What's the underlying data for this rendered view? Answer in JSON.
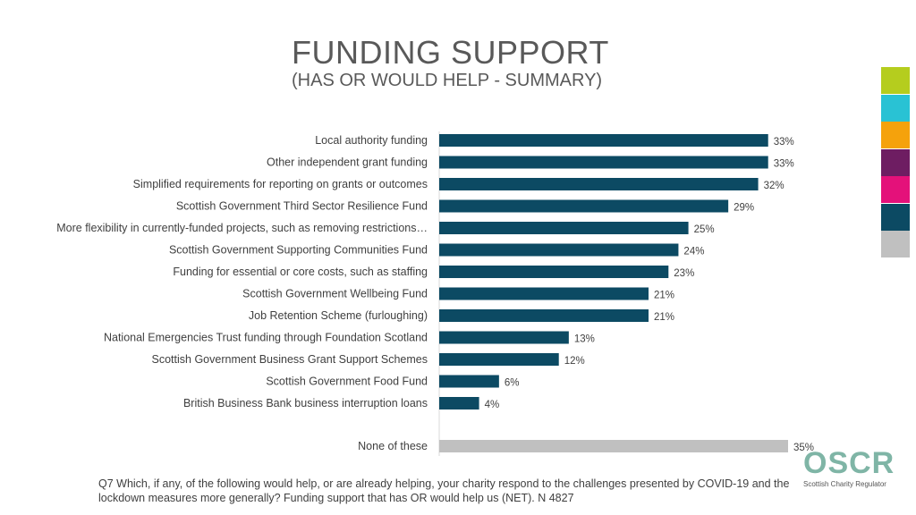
{
  "title": "FUNDING SUPPORT",
  "subtitle": "(HAS OR WOULD HELP - SUMMARY)",
  "chart_data": {
    "type": "bar",
    "orientation": "horizontal",
    "title": "FUNDING SUPPORT",
    "subtitle": "(HAS OR WOULD HELP - SUMMARY)",
    "categories": [
      "Local authority funding",
      "Other independent grant funding",
      "Simplified requirements for reporting on grants or outcomes",
      "Scottish Government Third Sector Resilience Fund",
      "More flexibility in currently-funded projects, such as removing restrictions…",
      "Scottish Government Supporting Communities Fund",
      "Funding for essential or core costs, such as staffing",
      "Scottish Government Wellbeing Fund",
      "Job Retention Scheme (furloughing)",
      "National Emergencies Trust funding through Foundation Scotland",
      "Scottish Government Business Grant Support Schemes",
      "Scottish Government Food Fund",
      "British Business Bank business interruption loans",
      "None of these"
    ],
    "values": [
      33,
      33,
      32,
      29,
      25,
      24,
      23,
      21,
      21,
      13,
      12,
      6,
      4,
      35
    ],
    "value_labels": [
      "33%",
      "33%",
      "32%",
      "29%",
      "25%",
      "24%",
      "23%",
      "21%",
      "21%",
      "13%",
      "12%",
      "6%",
      "4%",
      "35%"
    ],
    "xlim": [
      0,
      35
    ],
    "unit": "%",
    "colors": {
      "primary": "#0c4a63",
      "none": "#c0c0c0"
    }
  },
  "footnote": "Q7 Which, if any, of the following would help, or are already helping, your charity respond to the challenges presented by COVID-19 and the lockdown measures more generally? Funding support that has OR would help us (NET). N 4827",
  "logo": {
    "mark": "OSCR",
    "text": "Scottish Charity Regulator"
  },
  "color_strip": [
    "#b5cd1e",
    "#29c2d4",
    "#f5a20c",
    "#6e1d62",
    "#e4117a",
    "#0c4a63",
    "#c0c0c0"
  ]
}
